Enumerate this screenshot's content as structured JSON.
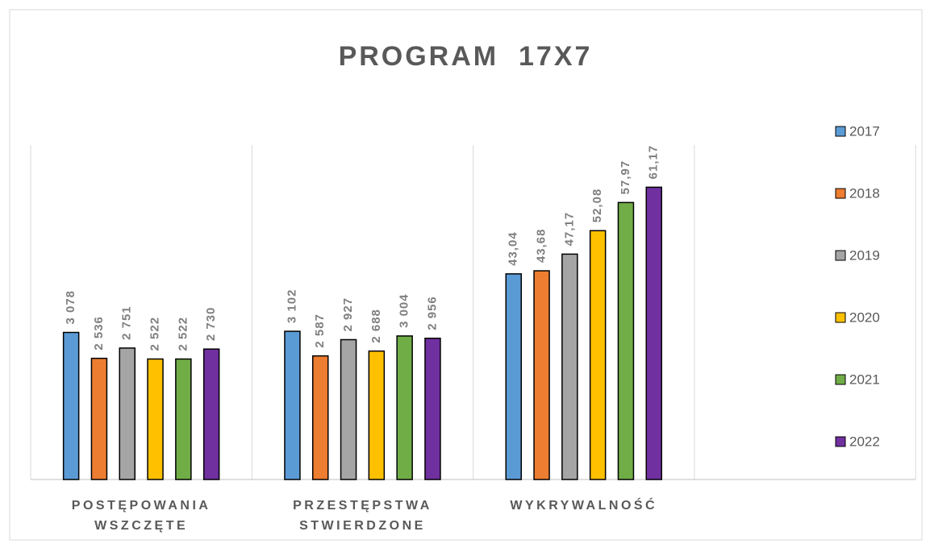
{
  "chart_data": {
    "type": "bar",
    "title": "PROGRAM  17X7",
    "categories": [
      "POSTĘPOWANIA WSZCZĘTE",
      "PRZESTĘPSTWA STWIERDZONE",
      "WYKRYWALNOŚĆ"
    ],
    "category_axis": [
      "y",
      "y",
      "y2"
    ],
    "ylim": [
      0,
      7000
    ],
    "y2lim": [
      0,
      70
    ],
    "series": [
      {
        "name": "2017",
        "color": "#5b9bd5",
        "values": [
          3078,
          3102,
          43.04
        ],
        "value_labels": [
          "3 078",
          "3 102",
          "43,04"
        ]
      },
      {
        "name": "2018",
        "color": "#ed7d31",
        "values": [
          2536,
          2587,
          43.68
        ],
        "value_labels": [
          "2 536",
          "2 587",
          "43,68"
        ]
      },
      {
        "name": "2019",
        "color": "#a5a5a5",
        "values": [
          2751,
          2927,
          47.17
        ],
        "value_labels": [
          "2 751",
          "2 927",
          "47,17"
        ]
      },
      {
        "name": "2020",
        "color": "#ffc000",
        "values": [
          2522,
          2688,
          52.08
        ],
        "value_labels": [
          "2 522",
          "2 688",
          "52,08"
        ]
      },
      {
        "name": "2021",
        "color": "#70ad47",
        "values": [
          2522,
          3004,
          57.97
        ],
        "value_labels": [
          "2 522",
          "3 004",
          "57,97"
        ]
      },
      {
        "name": "2022",
        "color": "#7030a0",
        "values": [
          2730,
          2956,
          61.17
        ],
        "value_labels": [
          "2 730",
          "2 956",
          "61,17"
        ]
      }
    ],
    "legend": "right"
  }
}
